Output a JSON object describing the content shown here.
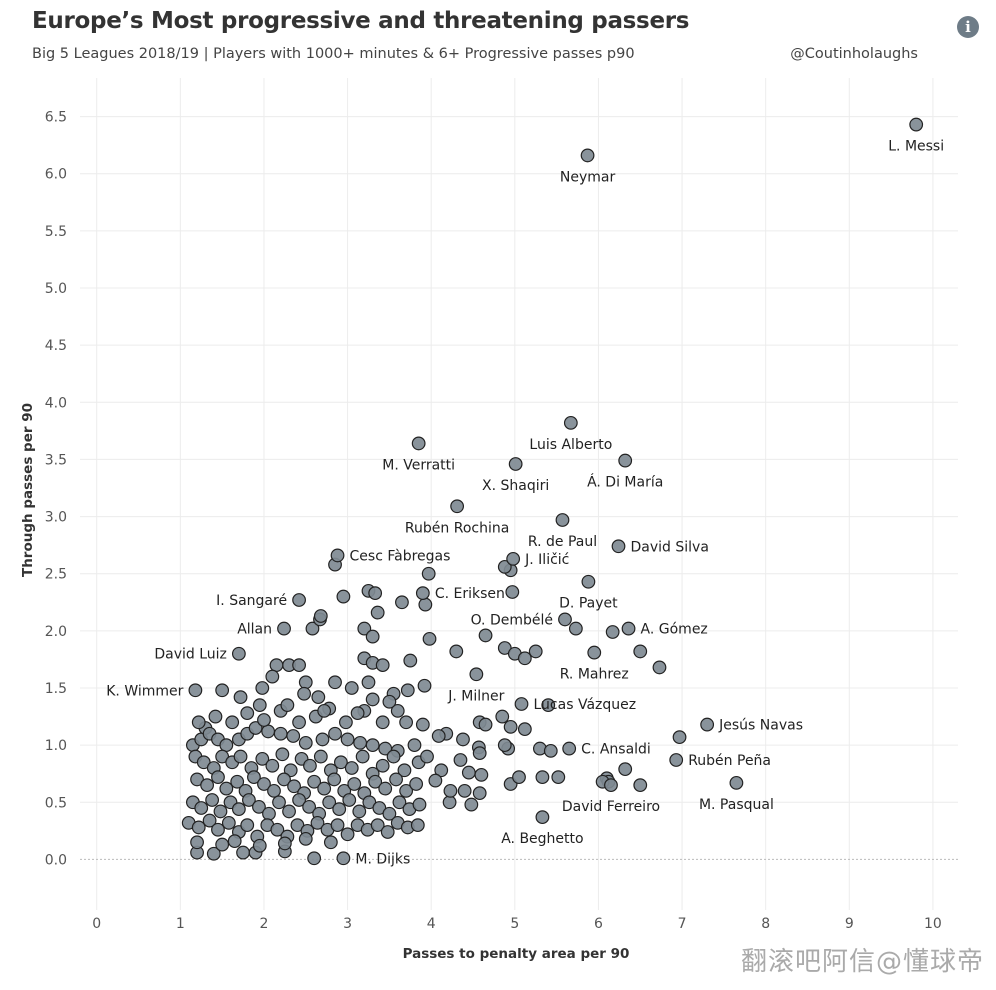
{
  "header": {
    "title": "Europe’s Most progressive and threatening passers",
    "subtitle": "Big 5 Leagues 2018/19 | Players  with 1000+ minutes & 6+ Progressive passes p90",
    "handle": "@Coutinholaughs",
    "info_icon": "info-icon"
  },
  "watermark": "翻滚吧阿信@懂球帝",
  "chart_data": {
    "type": "scatter",
    "xlabel": "Passes to penalty area per 90",
    "ylabel": "Through passes per 90",
    "xlim": [
      -0.2,
      10.3
    ],
    "ylim": [
      -0.6,
      6.75
    ],
    "xticks": [
      0,
      1,
      2,
      3,
      4,
      5,
      6,
      7,
      8,
      9,
      10
    ],
    "yticks": [
      0.0,
      0.5,
      1.0,
      1.5,
      2.0,
      2.5,
      3.0,
      3.5,
      4.0,
      4.5,
      5.0,
      5.5,
      6.0,
      6.5
    ],
    "grid": true,
    "marker_color": "#7f8a93",
    "marker_edge": "#222222",
    "labeled_points": [
      {
        "name": "L. Messi",
        "x": 9.8,
        "y": 6.43,
        "anchor": "below"
      },
      {
        "name": "Neymar",
        "x": 5.87,
        "y": 6.16,
        "anchor": "below"
      },
      {
        "name": "Luis Alberto",
        "x": 5.67,
        "y": 3.82,
        "anchor": "below"
      },
      {
        "name": "M. Verratti",
        "x": 3.85,
        "y": 3.64,
        "anchor": "below"
      },
      {
        "name": "Á. Di María",
        "x": 6.32,
        "y": 3.49,
        "anchor": "below"
      },
      {
        "name": "X. Shaqiri",
        "x": 5.01,
        "y": 3.46,
        "anchor": "below"
      },
      {
        "name": "Rubén Rochina",
        "x": 4.31,
        "y": 3.09,
        "anchor": "below"
      },
      {
        "name": "R. de Paul",
        "x": 5.57,
        "y": 2.97,
        "anchor": "below"
      },
      {
        "name": "David Silva",
        "x": 6.24,
        "y": 2.74,
        "anchor": "right"
      },
      {
        "name": "Cesc Fàbregas",
        "x": 2.88,
        "y": 2.66,
        "anchor": "right"
      },
      {
        "name": "J. Iličić",
        "x": 4.98,
        "y": 2.63,
        "anchor": "right"
      },
      {
        "name": "D. Payet",
        "x": 5.88,
        "y": 2.43,
        "anchor": "below"
      },
      {
        "name": "C. Eriksen",
        "x": 3.9,
        "y": 2.33,
        "anchor": "right"
      },
      {
        "name": "I. Sangaré",
        "x": 2.42,
        "y": 2.27,
        "anchor": "left"
      },
      {
        "name": "O. Dembélé",
        "x": 5.6,
        "y": 2.1,
        "anchor": "left"
      },
      {
        "name": "A. Gómez",
        "x": 6.36,
        "y": 2.02,
        "anchor": "right"
      },
      {
        "name": "Allan",
        "x": 2.24,
        "y": 2.02,
        "anchor": "left"
      },
      {
        "name": "David Luiz",
        "x": 1.7,
        "y": 1.8,
        "anchor": "left"
      },
      {
        "name": "R. Mahrez",
        "x": 5.95,
        "y": 1.81,
        "anchor": "below"
      },
      {
        "name": "K. Wimmer",
        "x": 1.18,
        "y": 1.48,
        "anchor": "left"
      },
      {
        "name": "J. Milner",
        "x": 4.54,
        "y": 1.62,
        "anchor": "below"
      },
      {
        "name": "Lucas Vázquez",
        "x": 5.08,
        "y": 1.36,
        "anchor": "right"
      },
      {
        "name": "Jesús Navas",
        "x": 7.3,
        "y": 1.18,
        "anchor": "right"
      },
      {
        "name": "C. Ansaldi",
        "x": 5.65,
        "y": 0.97,
        "anchor": "right"
      },
      {
        "name": "Rubén Peña",
        "x": 6.93,
        "y": 0.87,
        "anchor": "right"
      },
      {
        "name": "M. Pasqual",
        "x": 7.65,
        "y": 0.67,
        "anchor": "below"
      },
      {
        "name": "David Ferreiro",
        "x": 6.15,
        "y": 0.65,
        "anchor": "below"
      },
      {
        "name": "A. Beghetto",
        "x": 5.33,
        "y": 0.37,
        "anchor": "below"
      },
      {
        "name": "M. Dijks",
        "x": 2.95,
        "y": 0.01,
        "anchor": "right"
      }
    ],
    "points": [
      [
        1.2,
        0.06
      ],
      [
        1.4,
        0.05
      ],
      [
        1.75,
        0.06
      ],
      [
        1.9,
        0.06
      ],
      [
        2.25,
        0.07
      ],
      [
        2.6,
        0.01
      ],
      [
        2.3,
        1.7
      ],
      [
        2.42,
        1.7
      ],
      [
        2.15,
        1.7
      ],
      [
        1.98,
        1.5
      ],
      [
        2.1,
        1.6
      ],
      [
        2.5,
        1.55
      ],
      [
        2.65,
        1.42
      ],
      [
        2.85,
        1.55
      ],
      [
        3.05,
        1.5
      ],
      [
        3.2,
        1.76
      ],
      [
        3.3,
        1.72
      ],
      [
        3.42,
        1.7
      ],
      [
        3.75,
        1.74
      ],
      [
        3.25,
        1.55
      ],
      [
        3.55,
        1.45
      ],
      [
        3.72,
        1.48
      ],
      [
        3.92,
        1.52
      ],
      [
        3.3,
        1.4
      ],
      [
        3.6,
        1.3
      ],
      [
        3.2,
        1.3
      ],
      [
        2.58,
        2.02
      ],
      [
        2.67,
        2.1
      ],
      [
        2.68,
        2.13
      ],
      [
        3.2,
        2.02
      ],
      [
        3.3,
        1.95
      ],
      [
        3.36,
        2.16
      ],
      [
        3.25,
        2.35
      ],
      [
        3.33,
        2.33
      ],
      [
        2.95,
        2.3
      ],
      [
        2.85,
        2.58
      ],
      [
        3.65,
        2.25
      ],
      [
        3.93,
        2.23
      ],
      [
        3.97,
        2.5
      ],
      [
        3.98,
        1.93
      ],
      [
        4.3,
        1.82
      ],
      [
        4.65,
        1.96
      ],
      [
        4.88,
        1.85
      ],
      [
        5.0,
        1.8
      ],
      [
        5.12,
        1.76
      ],
      [
        5.25,
        1.82
      ],
      [
        4.95,
        2.53
      ],
      [
        4.88,
        2.56
      ],
      [
        4.97,
        2.34
      ],
      [
        5.73,
        2.02
      ],
      [
        6.5,
        1.82
      ],
      [
        6.73,
        1.68
      ],
      [
        6.17,
        1.99
      ],
      [
        5.4,
        1.35
      ],
      [
        4.58,
        1.2
      ],
      [
        4.65,
        1.18
      ],
      [
        4.85,
        1.25
      ],
      [
        4.95,
        1.16
      ],
      [
        5.12,
        1.14
      ],
      [
        4.92,
        0.97
      ],
      [
        5.3,
        0.97
      ],
      [
        5.43,
        0.95
      ],
      [
        4.88,
        1.0
      ],
      [
        4.57,
        0.98
      ],
      [
        4.38,
        1.05
      ],
      [
        4.18,
        1.1
      ],
      [
        4.09,
        1.08
      ],
      [
        4.35,
        0.87
      ],
      [
        4.58,
        0.93
      ],
      [
        4.45,
        0.76
      ],
      [
        4.6,
        0.74
      ],
      [
        4.95,
        0.66
      ],
      [
        5.05,
        0.72
      ],
      [
        5.33,
        0.72
      ],
      [
        5.52,
        0.72
      ],
      [
        4.4,
        0.6
      ],
      [
        4.58,
        0.58
      ],
      [
        4.48,
        0.48
      ],
      [
        4.22,
        0.5
      ],
      [
        4.23,
        0.6
      ],
      [
        4.12,
        0.78
      ],
      [
        4.05,
        0.69
      ],
      [
        6.97,
        1.07
      ],
      [
        6.1,
        0.71
      ],
      [
        6.12,
        0.68
      ],
      [
        6.05,
        0.68
      ],
      [
        6.32,
        0.79
      ],
      [
        6.5,
        0.65
      ],
      [
        1.15,
        1.0
      ],
      [
        1.25,
        1.05
      ],
      [
        1.3,
        1.15
      ],
      [
        1.35,
        1.1
      ],
      [
        1.45,
        1.05
      ],
      [
        1.55,
        1.0
      ],
      [
        1.7,
        1.05
      ],
      [
        1.8,
        1.1
      ],
      [
        1.9,
        1.15
      ],
      [
        2.05,
        1.12
      ],
      [
        2.2,
        1.1
      ],
      [
        2.35,
        1.08
      ],
      [
        2.5,
        1.02
      ],
      [
        2.7,
        1.05
      ],
      [
        2.85,
        1.1
      ],
      [
        3.0,
        1.05
      ],
      [
        3.15,
        1.02
      ],
      [
        3.3,
        1.0
      ],
      [
        3.45,
        0.97
      ],
      [
        3.6,
        0.95
      ],
      [
        3.8,
        1.0
      ],
      [
        1.18,
        0.9
      ],
      [
        1.28,
        0.85
      ],
      [
        1.4,
        0.8
      ],
      [
        1.5,
        0.9
      ],
      [
        1.62,
        0.85
      ],
      [
        1.72,
        0.9
      ],
      [
        1.85,
        0.8
      ],
      [
        1.98,
        0.88
      ],
      [
        2.1,
        0.82
      ],
      [
        2.22,
        0.92
      ],
      [
        2.32,
        0.78
      ],
      [
        2.45,
        0.88
      ],
      [
        2.55,
        0.82
      ],
      [
        2.68,
        0.9
      ],
      [
        2.8,
        0.78
      ],
      [
        2.92,
        0.85
      ],
      [
        3.05,
        0.8
      ],
      [
        3.18,
        0.9
      ],
      [
        3.3,
        0.75
      ],
      [
        3.42,
        0.82
      ],
      [
        3.55,
        0.9
      ],
      [
        3.68,
        0.78
      ],
      [
        3.85,
        0.85
      ],
      [
        3.95,
        0.9
      ],
      [
        1.2,
        0.7
      ],
      [
        1.32,
        0.65
      ],
      [
        1.45,
        0.72
      ],
      [
        1.55,
        0.62
      ],
      [
        1.68,
        0.68
      ],
      [
        1.78,
        0.6
      ],
      [
        1.88,
        0.72
      ],
      [
        2.0,
        0.66
      ],
      [
        2.12,
        0.6
      ],
      [
        2.24,
        0.7
      ],
      [
        2.36,
        0.64
      ],
      [
        2.48,
        0.58
      ],
      [
        2.6,
        0.68
      ],
      [
        2.72,
        0.62
      ],
      [
        2.84,
        0.7
      ],
      [
        2.96,
        0.6
      ],
      [
        3.08,
        0.66
      ],
      [
        3.2,
        0.58
      ],
      [
        3.33,
        0.68
      ],
      [
        3.45,
        0.62
      ],
      [
        3.58,
        0.7
      ],
      [
        3.7,
        0.6
      ],
      [
        3.82,
        0.66
      ],
      [
        1.15,
        0.5
      ],
      [
        1.25,
        0.45
      ],
      [
        1.38,
        0.52
      ],
      [
        1.48,
        0.42
      ],
      [
        1.6,
        0.5
      ],
      [
        1.7,
        0.44
      ],
      [
        1.82,
        0.52
      ],
      [
        1.94,
        0.46
      ],
      [
        2.06,
        0.4
      ],
      [
        2.18,
        0.5
      ],
      [
        2.3,
        0.42
      ],
      [
        2.42,
        0.52
      ],
      [
        2.54,
        0.46
      ],
      [
        2.66,
        0.4
      ],
      [
        2.78,
        0.5
      ],
      [
        2.9,
        0.44
      ],
      [
        3.02,
        0.52
      ],
      [
        3.14,
        0.42
      ],
      [
        3.26,
        0.5
      ],
      [
        3.38,
        0.45
      ],
      [
        3.5,
        0.4
      ],
      [
        3.62,
        0.5
      ],
      [
        3.74,
        0.44
      ],
      [
        3.86,
        0.48
      ],
      [
        1.1,
        0.32
      ],
      [
        1.22,
        0.28
      ],
      [
        1.35,
        0.34
      ],
      [
        1.45,
        0.26
      ],
      [
        1.58,
        0.32
      ],
      [
        1.7,
        0.24
      ],
      [
        1.8,
        0.3
      ],
      [
        1.92,
        0.2
      ],
      [
        2.04,
        0.3
      ],
      [
        2.16,
        0.26
      ],
      [
        2.28,
        0.2
      ],
      [
        2.4,
        0.3
      ],
      [
        2.52,
        0.25
      ],
      [
        2.64,
        0.32
      ],
      [
        2.76,
        0.26
      ],
      [
        2.88,
        0.3
      ],
      [
        3.0,
        0.22
      ],
      [
        3.12,
        0.3
      ],
      [
        3.24,
        0.26
      ],
      [
        3.36,
        0.3
      ],
      [
        3.48,
        0.24
      ],
      [
        3.6,
        0.32
      ],
      [
        3.72,
        0.28
      ],
      [
        3.84,
        0.3
      ],
      [
        1.2,
        0.15
      ],
      [
        1.5,
        0.13
      ],
      [
        1.65,
        0.16
      ],
      [
        1.95,
        0.12
      ],
      [
        2.25,
        0.14
      ],
      [
        2.5,
        0.18
      ],
      [
        2.8,
        0.15
      ],
      [
        1.22,
        1.2
      ],
      [
        1.42,
        1.25
      ],
      [
        1.62,
        1.2
      ],
      [
        1.8,
        1.28
      ],
      [
        2.0,
        1.22
      ],
      [
        2.2,
        1.3
      ],
      [
        2.42,
        1.2
      ],
      [
        2.62,
        1.25
      ],
      [
        2.78,
        1.32
      ],
      [
        2.98,
        1.2
      ],
      [
        3.12,
        1.28
      ],
      [
        3.42,
        1.2
      ],
      [
        3.7,
        1.2
      ],
      [
        3.9,
        1.18
      ],
      [
        1.5,
        1.48
      ],
      [
        1.72,
        1.42
      ],
      [
        1.95,
        1.35
      ],
      [
        2.28,
        1.35
      ],
      [
        2.48,
        1.45
      ],
      [
        2.72,
        1.3
      ],
      [
        3.5,
        1.38
      ]
    ]
  }
}
